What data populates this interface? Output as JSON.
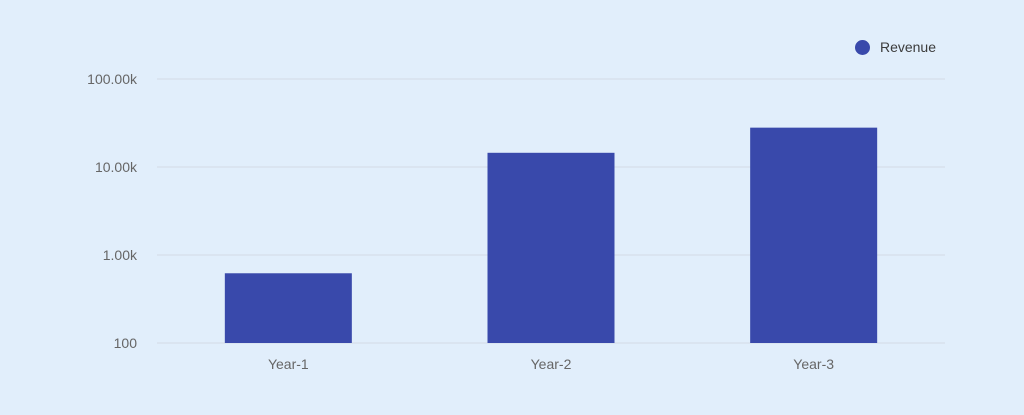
{
  "colors": {
    "background": "#e1eefb",
    "bar": "#3949ab",
    "grid": "#d2dbe5"
  },
  "legend": {
    "items": [
      {
        "label": "Revenue",
        "color": "#3949ab"
      }
    ],
    "position": "top-right"
  },
  "chart_data": {
    "type": "bar",
    "categories": [
      "Year-1",
      "Year-2",
      "Year-3"
    ],
    "series": [
      {
        "name": "Revenue",
        "values": [
          620,
          14500,
          28000
        ]
      }
    ],
    "yscale": "log",
    "ylim": [
      100,
      100000
    ],
    "yticks": [
      100,
      1000,
      10000,
      100000
    ],
    "ytick_labels": [
      "100",
      "1.00k",
      "10.00k",
      "100.00k"
    ],
    "grid": true,
    "title": "",
    "xlabel": "",
    "ylabel": ""
  }
}
